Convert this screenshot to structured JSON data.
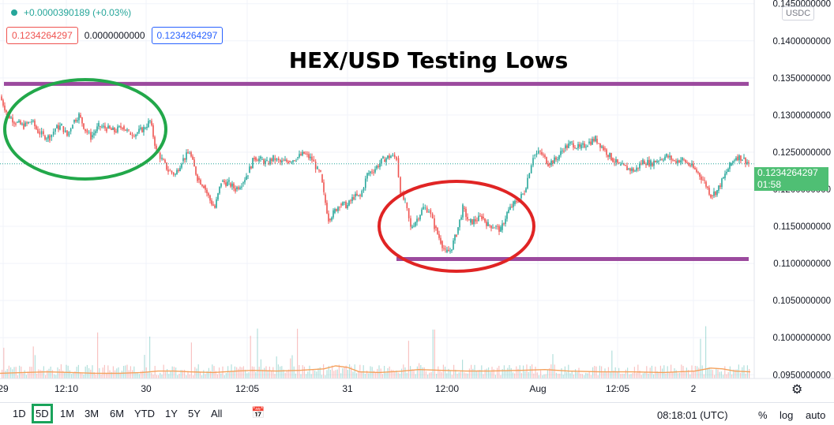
{
  "chart_data": {
    "type": "candlestick",
    "title": "HEX/USD Testing Lows",
    "currency": "USDC",
    "ylim": [
      0.0945,
      0.1455
    ],
    "y_ticks": [
      "0.1450000000",
      "0.1400000000",
      "0.1350000000",
      "0.1300000000",
      "0.1250000000",
      "0.1200000000",
      "0.1150000000",
      "0.1100000000",
      "0.1050000000",
      "0.1000000000",
      "0.0950000000"
    ],
    "x_ticks": [
      "29",
      "12:10",
      "30",
      "12:05",
      "31",
      "12:00",
      "Aug",
      "12:05",
      "2"
    ],
    "close_path": [
      [
        0,
        0.1325
      ],
      [
        10,
        0.13
      ],
      [
        20,
        0.129
      ],
      [
        30,
        0.1285
      ],
      [
        40,
        0.1292
      ],
      [
        48,
        0.1278
      ],
      [
        55,
        0.1272
      ],
      [
        63,
        0.127
      ],
      [
        70,
        0.1282
      ],
      [
        78,
        0.1285
      ],
      [
        85,
        0.1272
      ],
      [
        92,
        0.129
      ],
      [
        100,
        0.13
      ],
      [
        108,
        0.128
      ],
      [
        115,
        0.127
      ],
      [
        125,
        0.1285
      ],
      [
        135,
        0.1282
      ],
      [
        145,
        0.1278
      ],
      [
        155,
        0.1285
      ],
      [
        163,
        0.1276
      ],
      [
        172,
        0.1275
      ],
      [
        182,
        0.1282
      ],
      [
        190,
        0.1292
      ],
      [
        198,
        0.1252
      ],
      [
        205,
        0.124
      ],
      [
        213,
        0.1225
      ],
      [
        222,
        0.122
      ],
      [
        230,
        0.1238
      ],
      [
        240,
        0.125
      ],
      [
        250,
        0.1215
      ],
      [
        258,
        0.1205
      ],
      [
        266,
        0.1185
      ],
      [
        272,
        0.1175
      ],
      [
        280,
        0.121
      ],
      [
        290,
        0.1208
      ],
      [
        298,
        0.12
      ],
      [
        306,
        0.1208
      ],
      [
        314,
        0.1222
      ],
      [
        322,
        0.1243
      ],
      [
        330,
        0.124
      ],
      [
        338,
        0.1235
      ],
      [
        346,
        0.1242
      ],
      [
        355,
        0.1236
      ],
      [
        365,
        0.1238
      ],
      [
        375,
        0.1242
      ],
      [
        385,
        0.1248
      ],
      [
        395,
        0.124
      ],
      [
        402,
        0.1226
      ],
      [
        406,
        0.122
      ],
      [
        410,
        0.1193
      ],
      [
        416,
        0.116
      ],
      [
        422,
        0.1168
      ],
      [
        430,
        0.118
      ],
      [
        440,
        0.1178
      ],
      [
        448,
        0.119
      ],
      [
        456,
        0.119
      ],
      [
        465,
        0.122
      ],
      [
        475,
        0.1228
      ],
      [
        485,
        0.124
      ],
      [
        495,
        0.1245
      ],
      [
        502,
        0.1242
      ],
      [
        507,
        0.1195
      ],
      [
        513,
        0.1182
      ],
      [
        520,
        0.1148
      ],
      [
        528,
        0.116
      ],
      [
        536,
        0.1175
      ],
      [
        543,
        0.1172
      ],
      [
        550,
        0.115
      ],
      [
        558,
        0.113
      ],
      [
        564,
        0.1115
      ],
      [
        570,
        0.1117
      ],
      [
        578,
        0.114
      ],
      [
        586,
        0.1175
      ],
      [
        594,
        0.1155
      ],
      [
        602,
        0.1158
      ],
      [
        610,
        0.1163
      ],
      [
        618,
        0.1152
      ],
      [
        626,
        0.115
      ],
      [
        634,
        0.1145
      ],
      [
        642,
        0.1168
      ],
      [
        650,
        0.118
      ],
      [
        658,
        0.1188
      ],
      [
        664,
        0.1196
      ],
      [
        668,
        0.1215
      ],
      [
        675,
        0.1245
      ],
      [
        684,
        0.125
      ],
      [
        694,
        0.1235
      ],
      [
        704,
        0.124
      ],
      [
        714,
        0.1255
      ],
      [
        724,
        0.1262
      ],
      [
        734,
        0.1255
      ],
      [
        744,
        0.1262
      ],
      [
        754,
        0.1268
      ],
      [
        764,
        0.1255
      ],
      [
        774,
        0.1242
      ],
      [
        784,
        0.1232
      ],
      [
        794,
        0.1228
      ],
      [
        804,
        0.1225
      ],
      [
        814,
        0.1238
      ],
      [
        824,
        0.1235
      ],
      [
        834,
        0.124
      ],
      [
        844,
        0.1245
      ],
      [
        854,
        0.1238
      ],
      [
        864,
        0.124
      ],
      [
        874,
        0.1232
      ],
      [
        884,
        0.1222
      ],
      [
        892,
        0.121
      ],
      [
        900,
        0.1192
      ],
      [
        908,
        0.1198
      ],
      [
        916,
        0.1215
      ],
      [
        924,
        0.1232
      ],
      [
        932,
        0.1244
      ],
      [
        940,
        0.1242
      ],
      [
        948,
        0.1235
      ]
    ],
    "volume_ma": [
      [
        0,
        0.0952
      ],
      [
        30,
        0.0953
      ],
      [
        60,
        0.0954
      ],
      [
        90,
        0.0953
      ],
      [
        120,
        0.0952
      ],
      [
        150,
        0.0952
      ],
      [
        180,
        0.0953
      ],
      [
        200,
        0.0955
      ],
      [
        220,
        0.0955
      ],
      [
        240,
        0.0954
      ],
      [
        270,
        0.0953
      ],
      [
        300,
        0.0955
      ],
      [
        320,
        0.0956
      ],
      [
        350,
        0.0955
      ],
      [
        380,
        0.0956
      ],
      [
        410,
        0.0958
      ],
      [
        425,
        0.0962
      ],
      [
        440,
        0.096
      ],
      [
        455,
        0.0954
      ],
      [
        480,
        0.0953
      ],
      [
        510,
        0.0955
      ],
      [
        530,
        0.0957
      ],
      [
        560,
        0.0956
      ],
      [
        590,
        0.0955
      ],
      [
        620,
        0.0955
      ],
      [
        660,
        0.0956
      ],
      [
        690,
        0.0957
      ],
      [
        720,
        0.0955
      ],
      [
        760,
        0.0954
      ],
      [
        800,
        0.0954
      ],
      [
        840,
        0.0953
      ],
      [
        880,
        0.0955
      ],
      [
        900,
        0.0959
      ],
      [
        915,
        0.0958
      ],
      [
        930,
        0.0955
      ],
      [
        950,
        0.0954
      ]
    ],
    "resistance": {
      "value": 0.1342,
      "x_start": 5,
      "x_end": 948
    },
    "support": {
      "value": 0.1106,
      "x_start": 502,
      "x_end": 948
    },
    "green_circle": "top-left",
    "red_circle": "center"
  },
  "legend": {
    "change": "+0.0000390189 (+0.03%)",
    "open": "0.1234264297",
    "mid": "0.0000000000",
    "close": "0.1234264297"
  },
  "price_tag": {
    "price": "0.1234264297",
    "countdown": "01:58"
  },
  "toolbar": {
    "timeframes": [
      "1D",
      "5D",
      "1M",
      "3M",
      "6M",
      "YTD",
      "1Y",
      "5Y",
      "All"
    ],
    "active": "5D",
    "clock": "08:18:01 (UTC)",
    "percent": "%",
    "log": "log",
    "auto": "auto"
  },
  "colors": {
    "up": "#26a69a",
    "down": "#ef5350",
    "line": "#9b4a9e",
    "green_circle": "#22a84a",
    "red_circle": "#e02424"
  }
}
